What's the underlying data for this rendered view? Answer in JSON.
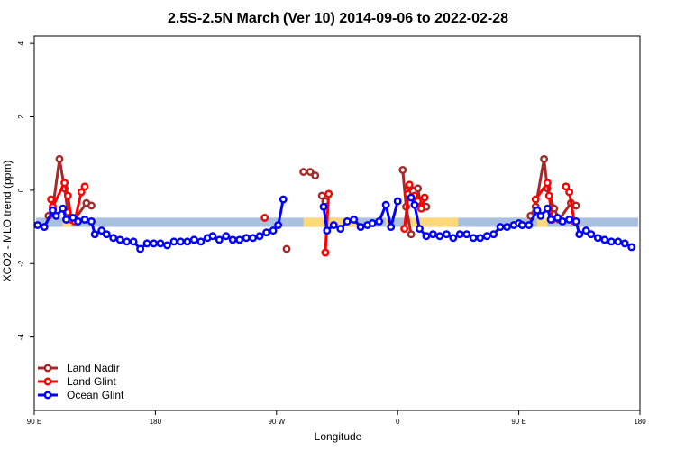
{
  "chart_data": {
    "type": "line",
    "title": "2.5S-2.5N March (Ver 10)   2014-09-06 to 2022-02-28",
    "xlabel": "Longitude",
    "ylabel": "XCO2 - MLO trend (ppm)",
    "xlim": [
      90,
      450
    ],
    "ylim": [
      -6,
      4.2
    ],
    "x_ticks": [
      {
        "value": 90,
        "label": "90 E"
      },
      {
        "value": 162,
        "label": "180"
      },
      {
        "value": 234,
        "label": "90 W"
      },
      {
        "value": 306,
        "label": "0"
      },
      {
        "value": 378,
        "label": "90 E"
      },
      {
        "value": 450,
        "label": "180"
      }
    ],
    "y_ticks": [
      {
        "value": 4,
        "label": "4"
      },
      {
        "value": 2,
        "label": "2"
      },
      {
        "value": 0,
        "label": "0"
      },
      {
        "value": -2,
        "label": "-2"
      },
      {
        "value": -4,
        "label": "-4"
      }
    ],
    "legend_position": "bottom-left",
    "land_band": {
      "y_range": [
        -1.0,
        -0.75
      ],
      "ocean_color": "#a9c0e0",
      "land_color": "#ffd878",
      "land_segments": [
        [
          107,
          112
        ],
        [
          250,
          282
        ],
        [
          299,
          301
        ],
        [
          312,
          342
        ],
        [
          389,
          395
        ]
      ]
    },
    "series": [
      {
        "name": "Land Nadir",
        "color": "#a52a2a",
        "segments": [
          [
            [
              98.5,
              -0.7
            ],
            [
              101,
              -0.5
            ],
            [
              105,
              0.85
            ],
            [
              108,
              0.05
            ],
            [
              110,
              -0.6
            ],
            [
              114,
              -0.8
            ],
            [
              121,
              -0.35
            ],
            [
              124,
              -0.42
            ]
          ],
          [
            [
              240,
              -1.6
            ]
          ],
          [
            [
              250,
              0.5
            ],
            [
              254,
              0.5
            ],
            [
              257,
              0.4
            ]
          ],
          [
            [
              261,
              -0.15
            ],
            [
              263,
              -0.3
            ]
          ],
          [
            [
              309,
              0.55
            ],
            [
              311,
              -0.45
            ],
            [
              314,
              -1.2
            ]
          ],
          [
            [
              313,
              0.08
            ],
            [
              318,
              0.05
            ],
            [
              320,
              -0.5
            ],
            [
              323,
              -0.45
            ]
          ],
          [
            [
              385,
              -0.7
            ],
            [
              388,
              -0.45
            ],
            [
              393,
              0.85
            ],
            [
              395,
              0.05
            ],
            [
              399,
              -0.5
            ],
            [
              402,
              -0.8
            ],
            [
              409,
              -0.35
            ],
            [
              412,
              -0.42
            ]
          ]
        ]
      },
      {
        "name": "Land Glint",
        "color": "#ff0000",
        "segments": [
          [
            [
              100,
              -0.25
            ],
            [
              101,
              -0.45
            ],
            [
              108,
              0.2
            ],
            [
              110,
              -0.15
            ],
            [
              112,
              -0.8
            ]
          ],
          [
            [
              120,
              0.1
            ],
            [
              118,
              -0.05
            ],
            [
              114,
              -0.85
            ]
          ],
          [
            [
              227,
              -0.75
            ]
          ],
          [
            [
              263,
              -1.7
            ],
            [
              265,
              -0.1
            ]
          ],
          [
            [
              312,
              -0.1
            ],
            [
              316,
              -0.15
            ],
            [
              318,
              -0.3
            ],
            [
              320,
              -0.5
            ],
            [
              322,
              -0.2
            ]
          ],
          [
            [
              310,
              -1.05
            ],
            [
              313,
              0.15
            ]
          ],
          [
            [
              388,
              -0.25
            ],
            [
              395,
              0.2
            ],
            [
              396,
              -0.15
            ],
            [
              398,
              -0.8
            ]
          ],
          [
            [
              406,
              0.1
            ],
            [
              408,
              -0.05
            ],
            [
              411,
              -0.85
            ]
          ]
        ]
      },
      {
        "name": "Ocean Glint",
        "color": "#0000ff",
        "segments": [
          [
            [
              92,
              -0.95
            ],
            [
              96,
              -1.0
            ],
            [
              101,
              -0.55
            ],
            [
              103,
              -0.7
            ],
            [
              107,
              -0.5
            ],
            [
              109,
              -0.8
            ],
            [
              113,
              -0.75
            ],
            [
              116,
              -0.85
            ],
            [
              120,
              -0.8
            ],
            [
              124,
              -0.85
            ],
            [
              126,
              -1.2
            ],
            [
              130,
              -1.1
            ],
            [
              133,
              -1.2
            ],
            [
              137,
              -1.3
            ],
            [
              141,
              -1.35
            ],
            [
              145,
              -1.4
            ],
            [
              149,
              -1.4
            ],
            [
              153,
              -1.6
            ],
            [
              157,
              -1.45
            ],
            [
              161,
              -1.45
            ],
            [
              165,
              -1.45
            ],
            [
              169,
              -1.5
            ],
            [
              173,
              -1.4
            ],
            [
              177,
              -1.4
            ],
            [
              181,
              -1.4
            ],
            [
              185,
              -1.35
            ],
            [
              189,
              -1.4
            ],
            [
              193,
              -1.3
            ],
            [
              196,
              -1.25
            ],
            [
              200,
              -1.35
            ],
            [
              204,
              -1.25
            ],
            [
              208,
              -1.35
            ],
            [
              212,
              -1.35
            ],
            [
              216,
              -1.3
            ],
            [
              220,
              -1.3
            ],
            [
              224,
              -1.25
            ],
            [
              228,
              -1.15
            ],
            [
              232,
              -1.1
            ],
            [
              235,
              -0.95
            ],
            [
              238,
              -0.25
            ]
          ],
          [
            [
              262,
              -0.45
            ],
            [
              264,
              -1.1
            ],
            [
              268,
              -0.95
            ],
            [
              272,
              -1.05
            ],
            [
              276,
              -0.85
            ],
            [
              280,
              -0.8
            ],
            [
              284,
              -1.0
            ],
            [
              288,
              -0.95
            ],
            [
              291,
              -0.9
            ],
            [
              295,
              -0.85
            ],
            [
              299,
              -0.4
            ],
            [
              302,
              -1.0
            ],
            [
              306,
              -0.3
            ]
          ],
          [
            [
              314,
              -0.2
            ],
            [
              316,
              -0.4
            ],
            [
              319,
              -1.05
            ],
            [
              323,
              -1.25
            ],
            [
              327,
              -1.2
            ],
            [
              331,
              -1.25
            ],
            [
              335,
              -1.2
            ],
            [
              339,
              -1.3
            ],
            [
              343,
              -1.2
            ],
            [
              347,
              -1.2
            ],
            [
              351,
              -1.3
            ],
            [
              355,
              -1.3
            ],
            [
              359,
              -1.25
            ],
            [
              363,
              -1.2
            ],
            [
              367,
              -1.0
            ],
            [
              371,
              -1.0
            ],
            [
              375,
              -0.95
            ],
            [
              378,
              -0.9
            ],
            [
              380,
              -0.95
            ]
          ],
          [
            [
              380,
              -0.95
            ],
            [
              384,
              -0.95
            ],
            [
              389,
              -0.55
            ],
            [
              391,
              -0.7
            ],
            [
              395,
              -0.5
            ],
            [
              397,
              -0.8
            ],
            [
              401,
              -0.75
            ],
            [
              404,
              -0.85
            ],
            [
              408,
              -0.8
            ],
            [
              412,
              -0.85
            ],
            [
              414,
              -1.2
            ],
            [
              418,
              -1.1
            ],
            [
              421,
              -1.2
            ],
            [
              425,
              -1.3
            ],
            [
              429,
              -1.35
            ],
            [
              433,
              -1.4
            ],
            [
              437,
              -1.4
            ],
            [
              441,
              -1.45
            ],
            [
              445,
              -1.55
            ]
          ]
        ]
      }
    ]
  }
}
